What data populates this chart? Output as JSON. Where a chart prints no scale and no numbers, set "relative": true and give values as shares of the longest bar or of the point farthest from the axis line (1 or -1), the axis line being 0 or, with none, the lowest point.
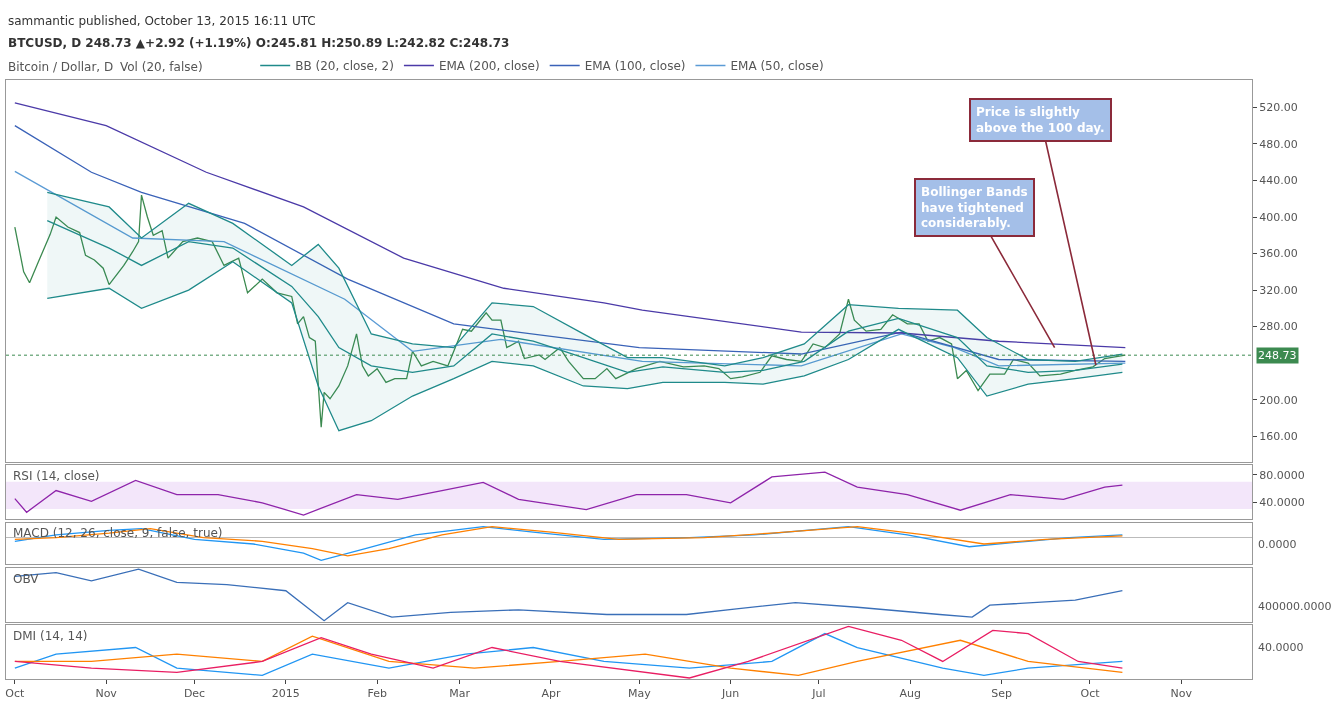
{
  "chart_data": [
    {
      "type": "line",
      "subtitle": "sammantic published, October 13, 2015 16:11 UTC",
      "title": "BTCUSD, D 248.73 ▲+2.92 (+1.19%) O:245.81 H:250.89 L:242.82 C:248.73",
      "annotations": [
        "Bitcoin / Dollar, D",
        "Vol (20, false)",
        {
          "text": "Price is slightly above the 100 day.",
          "x": "2015-10-03",
          "y": 238
        },
        {
          "text": "Bollinger Bands have tightened considerably.",
          "x": "2015-09-19",
          "y": 257
        }
      ],
      "series": [
        {
          "color": "#3c8a50",
          "x": [
            "2014-10-01",
            "2014-10-04",
            "2014-10-06",
            "2014-10-09",
            "2014-10-13",
            "2014-10-15",
            "2014-10-19",
            "2014-10-23",
            "2014-10-25",
            "2014-10-28",
            "2014-10-31",
            "2014-11-02",
            "2014-11-07",
            "2014-11-10",
            "2014-11-12",
            "2014-11-13",
            "2014-11-15",
            "2014-11-17",
            "2014-11-20",
            "2014-11-22",
            "2014-11-27",
            "2014-12-02",
            "2014-12-07",
            "2014-12-11",
            "2014-12-16",
            "2014-12-19",
            "2014-12-24",
            "2014-12-29",
            "2015-01-03",
            "2015-01-05",
            "2015-01-07",
            "2015-01-09",
            "2015-01-11",
            "2015-01-13",
            "2015-01-14",
            "2015-01-16",
            "2015-01-19",
            "2015-01-22",
            "2015-01-25",
            "2015-01-27",
            "2015-01-29",
            "2015-02-01",
            "2015-02-04",
            "2015-02-07",
            "2015-02-11",
            "2015-02-13",
            "2015-02-16",
            "2015-02-20",
            "2015-02-25",
            "2015-02-28",
            "2015-03-02",
            "2015-03-05",
            "2015-03-10",
            "2015-03-12",
            "2015-03-15",
            "2015-03-17",
            "2015-03-21",
            "2015-03-23",
            "2015-03-28",
            "2015-03-30",
            "2015-04-04",
            "2015-04-07",
            "2015-04-12",
            "2015-04-16",
            "2015-04-20",
            "2015-04-23",
            "2015-04-30",
            "2015-05-08",
            "2015-05-16",
            "2015-05-23",
            "2015-05-28",
            "2015-06-01",
            "2015-06-05",
            "2015-06-11",
            "2015-06-15",
            "2015-06-20",
            "2015-06-25",
            "2015-06-29",
            "2015-07-03",
            "2015-07-08",
            "2015-07-11",
            "2015-07-13",
            "2015-07-17",
            "2015-07-22",
            "2015-07-26",
            "2015-07-31",
            "2015-08-04",
            "2015-08-07",
            "2015-08-11",
            "2015-08-15",
            "2015-08-17",
            "2015-08-20",
            "2015-08-24",
            "2015-08-28",
            "2015-09-02",
            "2015-09-05",
            "2015-09-10",
            "2015-09-14",
            "2015-09-21",
            "2015-09-26",
            "2015-10-02",
            "2015-10-06",
            "2015-10-13"
          ],
          "values": [
            389,
            340,
            328,
            351,
            381,
            400,
            389,
            383,
            358,
            353,
            344,
            326,
            347,
            362,
            373,
            424,
            400,
            380,
            385,
            355,
            373,
            377,
            373,
            347,
            355,
            317,
            332,
            317,
            313,
            283,
            291,
            268,
            264,
            170,
            208,
            201,
            215,
            237,
            272,
            237,
            226,
            234,
            219,
            223,
            223,
            253,
            237,
            242,
            237,
            261,
            277,
            275,
            295,
            287,
            287,
            257,
            264,
            245,
            249,
            244,
            257,
            242,
            223,
            223,
            234,
            223,
            234,
            242,
            236,
            237,
            234,
            223,
            225,
            230,
            248,
            244,
            242,
            261,
            257,
            272,
            310,
            287,
            275,
            277,
            293,
            283,
            283,
            264,
            268,
            261,
            223,
            232,
            210,
            228,
            228,
            244,
            240,
            226,
            228,
            232,
            236,
            245,
            248.73
          ]
        },
        {
          "name": "EMA (50, close)",
          "color": "#5b9bd5",
          "x": [
            "2014-10-01",
            "2014-11-10",
            "2014-12-11",
            "2015-01-21",
            "2015-02-13",
            "2015-03-15",
            "2015-05-02",
            "2015-06-25",
            "2015-07-29",
            "2015-08-16",
            "2015-08-31",
            "2015-10-13"
          ],
          "values": [
            450,
            377,
            373,
            310,
            253,
            266,
            242,
            237,
            272,
            257,
            237,
            240
          ]
        },
        {
          "name": "EMA (100, close)",
          "color": "#3a62b8",
          "x": [
            "2014-10-01",
            "2014-10-27",
            "2014-11-13",
            "2014-12-18",
            "2015-01-22",
            "2015-02-27",
            "2015-05-01",
            "2015-06-25",
            "2015-07-29",
            "2015-08-31",
            "2015-10-13"
          ],
          "values": [
            500,
            449,
            427,
            393,
            332,
            283,
            257,
            250,
            274,
            244,
            242
          ]
        },
        {
          "name": "EMA (200, close)",
          "color": "#4b3aa8",
          "x": [
            "2014-10-01",
            "2014-11-01",
            "2014-12-05",
            "2015-01-07",
            "2015-02-10",
            "2015-03-16",
            "2015-04-19",
            "2015-05-02",
            "2015-06-25",
            "2015-07-29",
            "2015-08-31",
            "2015-10-13"
          ],
          "values": [
            525,
            500,
            449,
            411,
            355,
            322,
            306,
            298,
            274,
            273,
            264,
            257
          ]
        },
        {
          "name": "BB (20, close, 2)",
          "color": "#1f8a8a",
          "x": [
            "2014-10-12",
            "2014-11-02",
            "2014-11-13",
            "2014-11-29",
            "2014-12-14",
            "2015-01-03",
            "2015-01-12",
            "2015-01-19",
            "2015-01-30",
            "2015-02-13",
            "2015-02-27",
            "2015-03-12",
            "2015-03-26",
            "2015-04-12",
            "2015-04-27",
            "2015-05-09",
            "2015-05-30",
            "2015-06-12",
            "2015-06-26",
            "2015-07-11",
            "2015-07-28",
            "2015-08-17",
            "2015-08-27",
            "2015-09-10",
            "2015-09-26",
            "2015-10-12"
          ],
          "values": [
            396,
            366,
            347,
            373,
            366,
            324,
            291,
            257,
            237,
            230,
            237,
            272,
            264,
            246,
            230,
            236,
            230,
            232,
            242,
            275,
            289,
            268,
            237,
            230,
            232,
            239
          ],
          "upper": [
            427,
            411,
            377,
            415,
            393,
            347,
            370,
            344,
            272,
            261,
            257,
            306,
            302,
            272,
            246,
            246,
            237,
            246,
            261,
            304,
            300,
            298,
            268,
            244,
            242,
            250
          ],
          "lower": [
            311,
            322,
            300,
            320,
            351,
            306,
            215,
            166,
            177,
            204,
            223,
            242,
            237,
            215,
            212,
            219,
            219,
            217,
            226,
            244,
            277,
            246,
            204,
            217,
            223,
            230
          ]
        },
        {
          "color": "#1f8a8a",
          "x": [
            "2014-10-12",
            "2014-11-02",
            "2014-11-13",
            "2014-11-29",
            "2014-12-14",
            "2015-01-03",
            "2015-01-12",
            "2015-01-19",
            "2015-01-30",
            "2015-02-13",
            "2015-02-27",
            "2015-03-12",
            "2015-03-26",
            "2015-04-12",
            "2015-04-27",
            "2015-05-09",
            "2015-05-30",
            "2015-06-12",
            "2015-06-26",
            "2015-07-11",
            "2015-07-28",
            "2015-08-17",
            "2015-08-27",
            "2015-09-10",
            "2015-09-26",
            "2015-10-12"
          ],
          "values": [
            427,
            411,
            377,
            415,
            393,
            347,
            370,
            344,
            272,
            261,
            257,
            306,
            302,
            272,
            246,
            246,
            237,
            246,
            261,
            304,
            300,
            298,
            268,
            244,
            242,
            250
          ]
        },
        {
          "color": "#1f8a8a",
          "x": [
            "2014-10-12",
            "2014-11-02",
            "2014-11-13",
            "2014-11-29",
            "2014-12-14",
            "2015-01-03",
            "2015-01-12",
            "2015-01-19",
            "2015-01-30",
            "2015-02-13",
            "2015-02-27",
            "2015-03-12",
            "2015-03-26",
            "2015-04-12",
            "2015-04-27",
            "2015-05-09",
            "2015-05-30",
            "2015-06-12",
            "2015-06-26",
            "2015-07-11",
            "2015-07-28",
            "2015-08-17",
            "2015-08-27",
            "2015-09-10",
            "2015-09-26",
            "2015-10-12"
          ],
          "values": [
            311,
            322,
            300,
            320,
            351,
            306,
            215,
            166,
            177,
            204,
            223,
            242,
            237,
            215,
            212,
            219,
            219,
            217,
            226,
            244,
            277,
            246,
            204,
            217,
            223,
            230
          ]
        }
      ],
      "ref_lines": [
        {
          "axis": "y",
          "value": 248.73,
          "label": "248.73",
          "color": "#3c8a50",
          "line_style": "dotted"
        }
      ],
      "xlim": [
        "2014-09-28",
        "2015-11-25"
      ],
      "ylim": [
        132,
        550
      ],
      "yticks": [
        {
          "value": 160,
          "label": "160.00"
        },
        {
          "value": 200,
          "label": "200.00"
        },
        {
          "value": 280,
          "label": "280.00"
        },
        {
          "value": 320,
          "label": "320.00"
        },
        {
          "value": 360,
          "label": "360.00"
        },
        {
          "value": 400,
          "label": "400.00"
        },
        {
          "value": 440,
          "label": "440.00"
        },
        {
          "value": 480,
          "label": "480.00"
        },
        {
          "value": 520,
          "label": "520.00"
        }
      ],
      "legend": "top",
      "tick_labels": "y"
    },
    {
      "type": "line",
      "title": "RSI (14, close)",
      "series": [
        {
          "color": "#8e24aa",
          "x": [
            "2014-10-01",
            "2014-10-05",
            "2014-10-15",
            "2014-10-27",
            "2014-11-11",
            "2014-11-25",
            "2014-12-09",
            "2014-12-24",
            "2015-01-07",
            "2015-01-25",
            "2015-02-08",
            "2015-02-23",
            "2015-03-09",
            "2015-03-21",
            "2015-04-13",
            "2015-04-30",
            "2015-05-17",
            "2015-06-01",
            "2015-06-15",
            "2015-07-03",
            "2015-07-14",
            "2015-07-31",
            "2015-08-18",
            "2015-09-04",
            "2015-09-22",
            "2015-10-06",
            "2015-10-12"
          ],
          "values": [
            45,
            25,
            57,
            41,
            72,
            51,
            51,
            39,
            21,
            51,
            44,
            57,
            69,
            44,
            29,
            51,
            51,
            39,
            77,
            84,
            62,
            51,
            28,
            51,
            44,
            62,
            65
          ]
        }
      ],
      "bands": [
        {
          "axis": "y",
          "from": 30,
          "to": 70,
          "color": "#f3e6fa"
        }
      ],
      "xlim": [
        "2014-09-28",
        "2015-11-25"
      ],
      "ylim": [
        15,
        94
      ],
      "yticks": [
        {
          "value": 40,
          "label": "40.0000"
        },
        {
          "value": 80,
          "label": "80.0000"
        }
      ],
      "tick_labels": "y"
    },
    {
      "type": "line",
      "title": "MACD (12, 26, close, 9, false, true)",
      "relative": true,
      "annotations": [
        "0.0000"
      ],
      "series": [
        {
          "color": "#2196f3",
          "x": [
            "2014-10-01",
            "2014-10-15",
            "2014-11-02",
            "2014-11-13",
            "2014-12-01",
            "2014-12-21",
            "2015-01-07",
            "2015-01-13",
            "2015-01-28",
            "2015-02-14",
            "2015-03-09",
            "2015-03-26",
            "2015-04-19",
            "2015-05-18",
            "2015-06-09",
            "2015-07-11",
            "2015-07-31",
            "2015-08-21",
            "2015-09-10",
            "2015-09-24",
            "2015-10-12"
          ],
          "values": [
            -0.16,
            0.12,
            0.32,
            0.4,
            -0.08,
            -0.28,
            -0.68,
            -1,
            -0.48,
            0.12,
            0.48,
            0.24,
            -0.08,
            0,
            0.12,
            0.48,
            0.12,
            -0.4,
            -0.16,
            0,
            0.12
          ]
        },
        {
          "color": "#ff8000",
          "x": [
            "2014-10-01",
            "2014-10-15",
            "2014-11-02",
            "2014-11-16",
            "2014-12-04",
            "2014-12-24",
            "2015-01-10",
            "2015-01-22",
            "2015-02-05",
            "2015-02-23",
            "2015-03-12",
            "2015-04-01",
            "2015-04-24",
            "2015-05-23",
            "2015-06-15",
            "2015-07-14",
            "2015-08-06",
            "2015-08-26",
            "2015-09-16",
            "2015-10-12"
          ],
          "values": [
            -0.08,
            0,
            0.2,
            0.4,
            0,
            -0.16,
            -0.48,
            -0.8,
            -0.48,
            0.12,
            0.48,
            0.24,
            -0.08,
            0,
            0.2,
            0.48,
            0.12,
            -0.28,
            -0.08,
            0.08
          ]
        }
      ],
      "xlim": [
        "2014-09-28",
        "2015-11-25"
      ],
      "tick_labels": false
    },
    {
      "type": "line",
      "title": "OBV",
      "relative": true,
      "annotations": [
        "400000.0000"
      ],
      "series": [
        {
          "color": "#3a6fb8",
          "x": [
            "2014-10-01",
            "2014-10-15",
            "2014-10-27",
            "2014-11-12",
            "2014-11-25",
            "2014-12-12",
            "2015-01-01",
            "2015-01-14",
            "2015-01-22",
            "2015-02-06",
            "2015-02-26",
            "2015-03-21",
            "2015-04-20",
            "2015-05-17",
            "2015-06-03",
            "2015-06-23",
            "2015-07-14",
            "2015-08-11",
            "2015-08-22",
            "2015-08-28",
            "2015-09-26",
            "2015-10-12"
          ],
          "values": [
            0.86,
            0.93,
            0.77,
            1,
            0.74,
            0.7,
            0.58,
            0,
            0.35,
            0.07,
            0.16,
            0.21,
            0.12,
            0.12,
            0.23,
            0.35,
            0.26,
            0.12,
            0.07,
            0.3,
            0.4,
            0.58
          ]
        }
      ],
      "xlim": [
        "2014-09-28",
        "2015-11-25"
      ],
      "tick_labels": false
    },
    {
      "type": "line",
      "title": "DMI (14, 14)",
      "relative": true,
      "annotations": [
        "40.0000"
      ],
      "series": [
        {
          "color": "#2196f3",
          "x": [
            "2014-10-01",
            "2014-10-15",
            "2014-11-11",
            "2014-11-25",
            "2014-12-24",
            "2015-01-10",
            "2015-02-05",
            "2015-03-03",
            "2015-03-26",
            "2015-04-19",
            "2015-05-18",
            "2015-06-15",
            "2015-07-03",
            "2015-07-14",
            "2015-08-12",
            "2015-08-26",
            "2015-09-10",
            "2015-10-12"
          ],
          "values": [
            0.19,
            0.46,
            0.59,
            0.19,
            0.05,
            0.46,
            0.19,
            0.46,
            0.59,
            0.32,
            0.19,
            0.32,
            0.86,
            0.59,
            0.19,
            0.05,
            0.19,
            0.32
          ]
        },
        {
          "color": "#ff8000",
          "x": [
            "2014-10-01",
            "2014-10-27",
            "2014-11-25",
            "2014-12-24",
            "2015-01-10",
            "2015-02-05",
            "2015-03-06",
            "2015-04-04",
            "2015-05-03",
            "2015-06-01",
            "2015-06-24",
            "2015-07-14",
            "2015-08-18",
            "2015-09-10",
            "2015-10-12"
          ],
          "values": [
            0.32,
            0.32,
            0.46,
            0.32,
            0.81,
            0.32,
            0.19,
            0.32,
            0.46,
            0.19,
            0.05,
            0.32,
            0.73,
            0.32,
            0.11
          ]
        },
        {
          "color": "#e91e63",
          "x": [
            "2014-10-01",
            "2014-10-27",
            "2014-11-25",
            "2014-12-24",
            "2015-01-13",
            "2015-01-30",
            "2015-02-20",
            "2015-03-12",
            "2015-04-04",
            "2015-05-18",
            "2015-06-07",
            "2015-07-11",
            "2015-07-29",
            "2015-08-12",
            "2015-08-29",
            "2015-09-10",
            "2015-09-27",
            "2015-10-12"
          ],
          "values": [
            0.32,
            0.19,
            0.11,
            0.32,
            0.78,
            0.46,
            0.19,
            0.59,
            0.32,
            0,
            0.32,
            1,
            0.73,
            0.32,
            0.92,
            0.86,
            0.32,
            0.19
          ]
        }
      ],
      "xlim": [
        "2014-09-28",
        "2015-11-25"
      ],
      "xticks": [
        {
          "value": "2014-10-01",
          "label": "Oct"
        },
        {
          "value": "2014-11-01",
          "label": "Nov"
        },
        {
          "value": "2014-12-01",
          "label": "Dec"
        },
        {
          "value": "2015-01-01",
          "label": "2015"
        },
        {
          "value": "2015-02-01",
          "label": "Feb"
        },
        {
          "value": "2015-03-01",
          "label": "Mar"
        },
        {
          "value": "2015-04-01",
          "label": "Apr"
        },
        {
          "value": "2015-05-01",
          "label": "May"
        },
        {
          "value": "2015-06-01",
          "label": "Jun"
        },
        {
          "value": "2015-07-01",
          "label": "Jul"
        },
        {
          "value": "2015-08-01",
          "label": "Aug"
        },
        {
          "value": "2015-09-01",
          "label": "Sep"
        },
        {
          "value": "2015-10-01",
          "label": "Oct"
        },
        {
          "value": "2015-11-01",
          "label": "Nov"
        }
      ],
      "tick_labels": "x"
    }
  ]
}
